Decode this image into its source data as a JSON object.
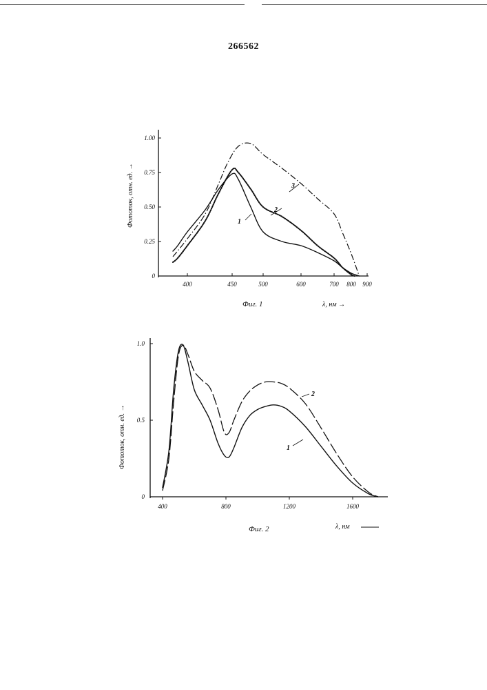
{
  "page": {
    "number": "266562"
  },
  "chart_data": [
    {
      "type": "line",
      "caption": "Фиг. 1",
      "xlabel": "λ, нм",
      "ylabel": "Фототок, отн. ед.",
      "x_tick_labels": [
        "400",
        "450",
        "500",
        "600",
        "700",
        "800",
        "900"
      ],
      "y_tick_labels": [
        "0",
        "0.25",
        "0.50",
        "0.75",
        "1.00"
      ],
      "ylim": [
        0,
        1.0
      ],
      "grid": false,
      "legend": "none",
      "series": [
        {
          "name": "1",
          "style": "solid",
          "x": [
            370,
            380,
            400,
            420,
            435,
            450,
            460,
            480,
            500,
            550,
            600,
            650,
            700,
            750,
            800,
            850
          ],
          "y": [
            0.18,
            0.22,
            0.32,
            0.48,
            0.63,
            0.74,
            0.7,
            0.5,
            0.32,
            0.25,
            0.22,
            0.17,
            0.11,
            0.06,
            0.02,
            0.0
          ]
        },
        {
          "name": "2",
          "style": "dotted",
          "x": [
            370,
            380,
            400,
            420,
            435,
            450,
            460,
            480,
            500,
            550,
            600,
            650,
            700,
            750,
            800,
            820
          ],
          "y": [
            0.1,
            0.13,
            0.22,
            0.4,
            0.6,
            0.77,
            0.75,
            0.63,
            0.5,
            0.43,
            0.33,
            0.22,
            0.13,
            0.06,
            0.01,
            0.0
          ]
        },
        {
          "name": "3",
          "style": "dash-dot",
          "x": [
            370,
            400,
            420,
            435,
            445,
            460,
            480,
            500,
            550,
            600,
            650,
            700,
            750,
            800,
            850
          ],
          "y": [
            0.14,
            0.27,
            0.45,
            0.67,
            0.82,
            0.94,
            0.96,
            0.88,
            0.78,
            0.67,
            0.56,
            0.45,
            0.31,
            0.16,
            0.0
          ]
        }
      ]
    },
    {
      "type": "line",
      "caption": "Фиг. 2",
      "xlabel": "λ, нм",
      "ylabel": "Фототок, отн. ед.",
      "x_tick_labels": [
        "400",
        "800",
        "1200",
        "1600"
      ],
      "y_tick_labels": [
        "0",
        "0.5",
        "1.0"
      ],
      "xlim": [
        320,
        1760
      ],
      "ylim": [
        0,
        1.0
      ],
      "grid": false,
      "legend": "none",
      "series": [
        {
          "name": "1",
          "style": "solid",
          "x": [
            400,
            440,
            470,
            500,
            530,
            560,
            600,
            650,
            700,
            750,
            790,
            820,
            850,
            900,
            950,
            1000,
            1050,
            1100,
            1150,
            1200,
            1300,
            1400,
            1500,
            1600,
            1700,
            1760
          ],
          "y": [
            0.06,
            0.3,
            0.7,
            0.95,
            0.99,
            0.88,
            0.7,
            0.6,
            0.5,
            0.35,
            0.27,
            0.26,
            0.32,
            0.45,
            0.53,
            0.57,
            0.59,
            0.6,
            0.59,
            0.56,
            0.46,
            0.33,
            0.2,
            0.09,
            0.02,
            0.0
          ]
        },
        {
          "name": "2",
          "style": "long-dash",
          "x": [
            400,
            440,
            470,
            500,
            530,
            560,
            600,
            650,
            700,
            750,
            790,
            820,
            850,
            900,
            950,
            1000,
            1050,
            1100,
            1150,
            1200,
            1300,
            1400,
            1500,
            1600,
            1700,
            1760
          ],
          "y": [
            0.04,
            0.25,
            0.62,
            0.92,
            0.99,
            0.93,
            0.82,
            0.76,
            0.71,
            0.57,
            0.42,
            0.42,
            0.5,
            0.62,
            0.69,
            0.73,
            0.75,
            0.75,
            0.74,
            0.71,
            0.61,
            0.45,
            0.28,
            0.13,
            0.03,
            0.0
          ]
        }
      ]
    }
  ]
}
